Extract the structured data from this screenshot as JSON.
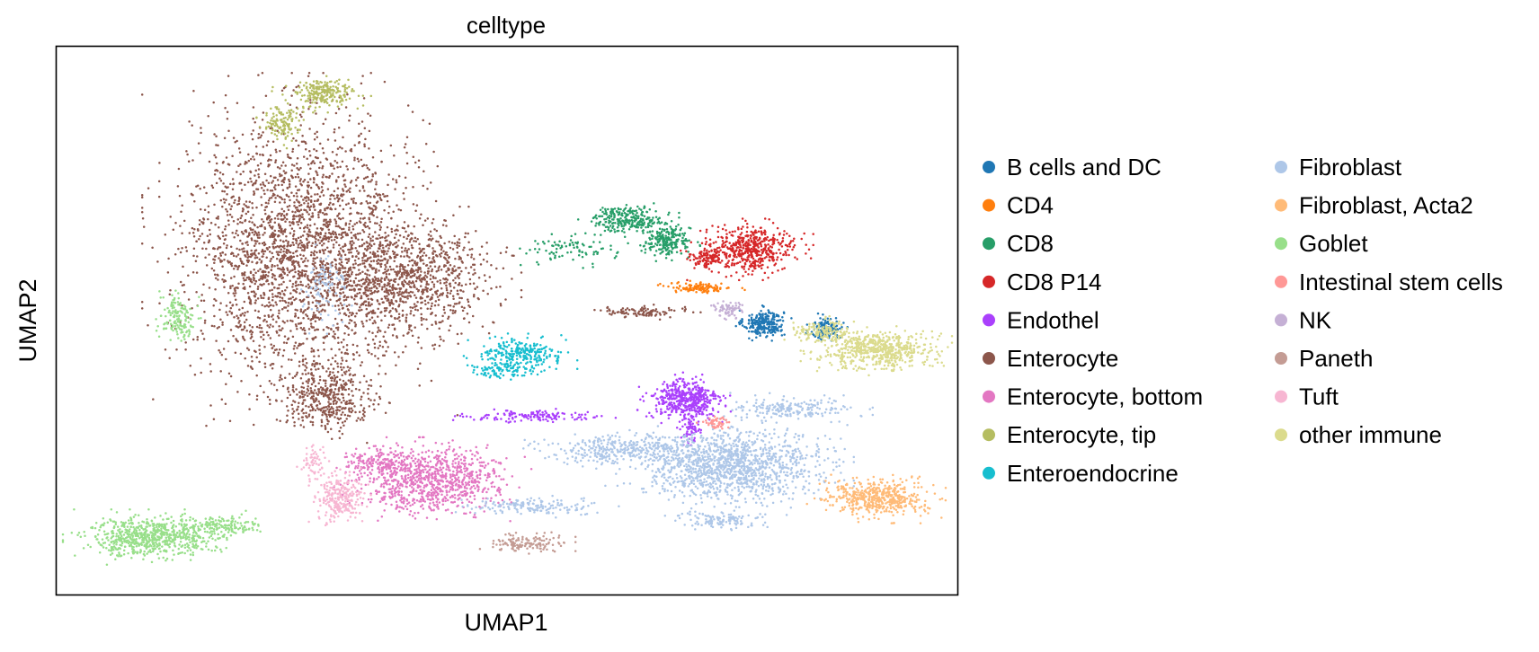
{
  "chart_data": {
    "type": "scatter",
    "title": "celltype",
    "xlabel": "UMAP1",
    "ylabel": "UMAP2",
    "xlim": [
      0,
      100
    ],
    "ylim": [
      0,
      100
    ],
    "axis_ticks": false,
    "grid": false,
    "legend_position": "right",
    "legend_columns": 2,
    "series": [
      {
        "name": "B cells and DC",
        "color": "#1f77b4",
        "clusters": [
          {
            "cx": 78.5,
            "cy": 49.5,
            "rx": 2.2,
            "ry": 2.4,
            "n": 260
          },
          {
            "cx": 85.5,
            "cy": 48.5,
            "rx": 1.8,
            "ry": 2.0,
            "n": 150
          }
        ]
      },
      {
        "name": "CD4",
        "color": "#ff7f0e",
        "clusters": [
          {
            "cx": 71.5,
            "cy": 56.0,
            "rx": 3.5,
            "ry": 0.9,
            "n": 120
          }
        ]
      },
      {
        "name": "CD8",
        "color": "#279e68",
        "clusters": [
          {
            "cx": 63.5,
            "cy": 68.5,
            "rx": 4.0,
            "ry": 2.3,
            "n": 260
          },
          {
            "cx": 67.8,
            "cy": 64.5,
            "rx": 2.6,
            "ry": 2.6,
            "n": 220
          },
          {
            "cx": 57.0,
            "cy": 63.0,
            "rx": 5.0,
            "ry": 2.5,
            "n": 90
          }
        ]
      },
      {
        "name": "CD8 P14",
        "color": "#d62728",
        "clusters": [
          {
            "cx": 77.0,
            "cy": 63.0,
            "rx": 5.0,
            "ry": 4.0,
            "n": 520
          },
          {
            "cx": 72.0,
            "cy": 61.5,
            "rx": 2.0,
            "ry": 1.6,
            "n": 80
          }
        ]
      },
      {
        "name": "Endothel",
        "color": "#aa40fc",
        "clusters": [
          {
            "cx": 69.8,
            "cy": 35.5,
            "rx": 3.8,
            "ry": 3.6,
            "n": 480
          },
          {
            "cx": 53.5,
            "cy": 32.5,
            "rx": 7.5,
            "ry": 1.0,
            "n": 140
          },
          {
            "cx": 70.5,
            "cy": 30.0,
            "rx": 1.0,
            "ry": 2.5,
            "n": 60
          }
        ]
      },
      {
        "name": "Enterocyte",
        "color": "#8c564b",
        "clusters": [
          {
            "cx": 27.0,
            "cy": 63.0,
            "rx": 12.5,
            "ry": 23.0,
            "n": 2600
          },
          {
            "cx": 39.0,
            "cy": 57.5,
            "rx": 9.0,
            "ry": 9.5,
            "n": 900
          },
          {
            "cx": 30.0,
            "cy": 36.0,
            "rx": 5.0,
            "ry": 6.0,
            "n": 400
          },
          {
            "cx": 64.5,
            "cy": 51.5,
            "rx": 5.0,
            "ry": 1.0,
            "n": 100
          }
        ]
      },
      {
        "name": "Enterocyte, bottom",
        "color": "#e377c2",
        "clusters": [
          {
            "cx": 41.5,
            "cy": 21.0,
            "rx": 8.0,
            "ry": 5.5,
            "n": 900
          },
          {
            "cx": 36.0,
            "cy": 24.0,
            "rx": 4.0,
            "ry": 2.5,
            "n": 160
          }
        ]
      },
      {
        "name": "Enterocyte, tip",
        "color": "#b5bd61",
        "clusters": [
          {
            "cx": 29.5,
            "cy": 91.5,
            "rx": 4.0,
            "ry": 2.5,
            "n": 220
          },
          {
            "cx": 25.0,
            "cy": 85.5,
            "rx": 2.0,
            "ry": 3.5,
            "n": 120
          }
        ]
      },
      {
        "name": "Enteroendocrine",
        "color": "#17becf",
        "clusters": [
          {
            "cx": 51.5,
            "cy": 44.0,
            "rx": 4.5,
            "ry": 2.6,
            "n": 250
          },
          {
            "cx": 49.0,
            "cy": 41.0,
            "rx": 3.5,
            "ry": 1.6,
            "n": 100
          }
        ]
      },
      {
        "name": "Fibroblast",
        "color": "#aec7e8",
        "clusters": [
          {
            "cx": 74.5,
            "cy": 23.5,
            "rx": 10.0,
            "ry": 6.5,
            "n": 1300
          },
          {
            "cx": 63.0,
            "cy": 26.5,
            "rx": 9.0,
            "ry": 2.5,
            "n": 360
          },
          {
            "cx": 53.0,
            "cy": 16.0,
            "rx": 7.0,
            "ry": 1.5,
            "n": 160
          },
          {
            "cx": 81.5,
            "cy": 34.0,
            "rx": 6.5,
            "ry": 2.0,
            "n": 200
          },
          {
            "cx": 74.0,
            "cy": 13.5,
            "rx": 5.0,
            "ry": 1.5,
            "n": 120
          },
          {
            "cx": 30.0,
            "cy": 56.0,
            "rx": 2.5,
            "ry": 6.0,
            "n": 90
          }
        ]
      },
      {
        "name": "Fibroblast, Acta2",
        "color": "#ffbb78",
        "clusters": [
          {
            "cx": 91.0,
            "cy": 17.5,
            "rx": 5.5,
            "ry": 3.2,
            "n": 520
          }
        ]
      },
      {
        "name": "Goblet",
        "color": "#98df8a",
        "clusters": [
          {
            "cx": 10.5,
            "cy": 10.5,
            "rx": 7.0,
            "ry": 3.6,
            "n": 700
          },
          {
            "cx": 13.5,
            "cy": 50.5,
            "rx": 2.0,
            "ry": 3.6,
            "n": 150
          },
          {
            "cx": 18.5,
            "cy": 12.5,
            "rx": 4.5,
            "ry": 2.0,
            "n": 150
          }
        ]
      },
      {
        "name": "Intestinal stem cells",
        "color": "#ff9896",
        "clusters": [
          {
            "cx": 73.0,
            "cy": 31.5,
            "rx": 1.5,
            "ry": 1.0,
            "n": 50
          }
        ]
      },
      {
        "name": "NK",
        "color": "#c5b0d5",
        "clusters": [
          {
            "cx": 74.5,
            "cy": 52.0,
            "rx": 1.5,
            "ry": 1.5,
            "n": 70
          }
        ]
      },
      {
        "name": "Paneth",
        "color": "#c49c94",
        "clusters": [
          {
            "cx": 52.0,
            "cy": 9.5,
            "rx": 4.0,
            "ry": 1.6,
            "n": 140
          }
        ]
      },
      {
        "name": "Tuft",
        "color": "#f7b6d2",
        "clusters": [
          {
            "cx": 31.5,
            "cy": 17.5,
            "rx": 2.5,
            "ry": 4.0,
            "n": 250
          },
          {
            "cx": 28.5,
            "cy": 24.5,
            "rx": 1.5,
            "ry": 3.0,
            "n": 60
          }
        ]
      },
      {
        "name": "other immune",
        "color": "#dbdb8d",
        "clusters": [
          {
            "cx": 91.0,
            "cy": 44.5,
            "rx": 6.0,
            "ry": 3.2,
            "n": 600
          },
          {
            "cx": 85.0,
            "cy": 48.0,
            "rx": 3.0,
            "ry": 2.0,
            "n": 150
          }
        ]
      }
    ]
  }
}
